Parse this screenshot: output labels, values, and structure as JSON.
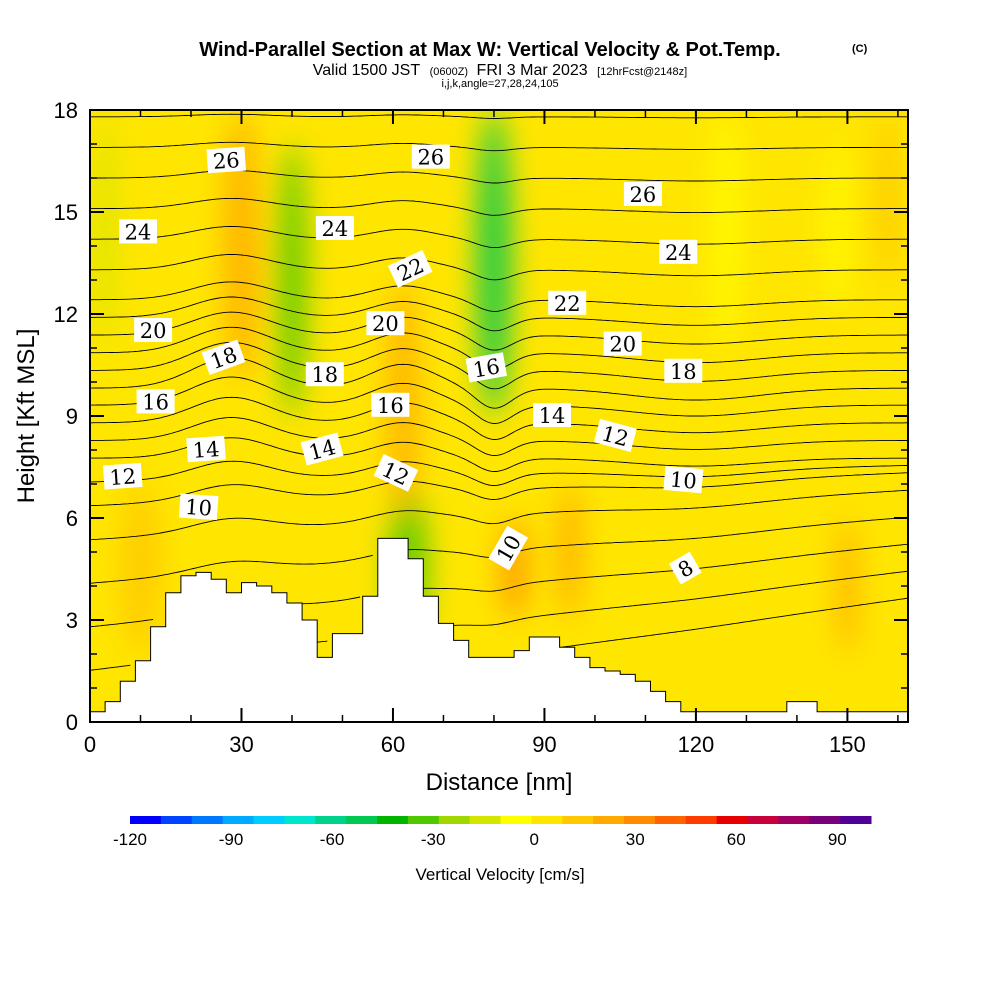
{
  "chart_data": {
    "type": "heatmap",
    "title": "Wind-Parallel Section at Max W: Vertical Velocity & Pot.Temp.",
    "copyright": "(C)",
    "subtitle_parts": [
      "Valid 1500 JST",
      "(0600Z)",
      "FRI 3 Mar 2023",
      "[12hrFcst@2148z]"
    ],
    "subtitle2": "i,j,k,angle=27,28,24,105",
    "xlabel": "Distance [nm]",
    "ylabel": "Height [Kft MSL]",
    "xlim": [
      0,
      162
    ],
    "ylim": [
      0,
      18
    ],
    "x_ticks": [
      0,
      30,
      60,
      90,
      120,
      150
    ],
    "y_ticks": [
      0,
      3,
      6,
      9,
      12,
      15,
      18
    ],
    "grid": false,
    "colorbar": {
      "label": "Vertical Velocity [cm/s]",
      "ticks": [
        -120,
        -90,
        -60,
        -30,
        0,
        30,
        60,
        90
      ],
      "range": [
        -120,
        100
      ],
      "colors": [
        "#0000ff",
        "#0044ff",
        "#0077ff",
        "#00aaff",
        "#00ccff",
        "#00e6cc",
        "#00d28c",
        "#00c850",
        "#00b400",
        "#50c800",
        "#a0d700",
        "#d2e600",
        "#ffff00",
        "#ffe600",
        "#ffc800",
        "#ffaa00",
        "#ff8c00",
        "#ff6400",
        "#ff3c00",
        "#e60000",
        "#c8003c",
        "#a00064",
        "#780078",
        "#500096"
      ]
    },
    "theta_interval": 1,
    "theta_contour_labels": [
      {
        "value": 26,
        "x": 27.0,
        "y": 16.5,
        "angle": -4
      },
      {
        "value": 26,
        "x": 67.5,
        "y": 16.6,
        "angle": 0
      },
      {
        "value": 26,
        "x": 109.5,
        "y": 15.5,
        "angle": 0
      },
      {
        "value": 24,
        "x": 9.5,
        "y": 14.4,
        "angle": 0
      },
      {
        "value": 24,
        "x": 48.5,
        "y": 14.5,
        "angle": 0
      },
      {
        "value": 24,
        "x": 116.5,
        "y": 13.8,
        "angle": 0
      },
      {
        "value": 22,
        "x": 63.5,
        "y": 13.3,
        "angle": -25
      },
      {
        "value": 22,
        "x": 94.5,
        "y": 12.3,
        "angle": 0
      },
      {
        "value": 20,
        "x": 12.5,
        "y": 11.5,
        "angle": 0
      },
      {
        "value": 20,
        "x": 58.5,
        "y": 11.7,
        "angle": 0
      },
      {
        "value": 20,
        "x": 105.5,
        "y": 11.1,
        "angle": 0
      },
      {
        "value": 18,
        "x": 26.5,
        "y": 10.7,
        "angle": -20
      },
      {
        "value": 18,
        "x": 46.5,
        "y": 10.2,
        "angle": 0
      },
      {
        "value": 18,
        "x": 117.5,
        "y": 10.3,
        "angle": 0
      },
      {
        "value": 16,
        "x": 13.0,
        "y": 9.4,
        "angle": 0
      },
      {
        "value": 16,
        "x": 59.5,
        "y": 9.3,
        "angle": 0
      },
      {
        "value": 16,
        "x": 78.5,
        "y": 10.4,
        "angle": -10
      },
      {
        "value": 14,
        "x": 23.0,
        "y": 8.0,
        "angle": -4
      },
      {
        "value": 14,
        "x": 46.0,
        "y": 8.0,
        "angle": -15
      },
      {
        "value": 14,
        "x": 91.5,
        "y": 9.0,
        "angle": 0
      },
      {
        "value": 12,
        "x": 6.5,
        "y": 7.2,
        "angle": -4
      },
      {
        "value": 12,
        "x": 60.5,
        "y": 7.3,
        "angle": 25
      },
      {
        "value": 12,
        "x": 104.0,
        "y": 8.4,
        "angle": 15
      },
      {
        "value": 10,
        "x": 21.5,
        "y": 6.3,
        "angle": 4
      },
      {
        "value": 10,
        "x": 83.0,
        "y": 5.1,
        "angle": -60
      },
      {
        "value": 10,
        "x": 117.5,
        "y": 7.1,
        "angle": 5
      },
      {
        "value": 8,
        "x": 118.0,
        "y": 4.5,
        "angle": -30
      }
    ],
    "vertical_velocity_features": [
      {
        "x": 80,
        "y_min": 9,
        "y_max": 18,
        "value": -50,
        "width": 7
      },
      {
        "x": 40,
        "y_min": 9,
        "y_max": 17,
        "value": -30,
        "width": 6
      },
      {
        "x": 3,
        "y_min": 11,
        "y_max": 18,
        "value": -15,
        "width": 4
      },
      {
        "x": 126,
        "y_min": 11,
        "y_max": 18,
        "value": -10,
        "width": 5
      },
      {
        "x": 148,
        "y_min": 12,
        "y_max": 17,
        "value": -10,
        "width": 4
      },
      {
        "x": 63,
        "y_min": 2,
        "y_max": 7,
        "value": -30,
        "width": 8
      },
      {
        "x": 30,
        "y_min": 10,
        "y_max": 18,
        "value": 20,
        "width": 7
      },
      {
        "x": 62,
        "y_min": 6,
        "y_max": 13,
        "value": 20,
        "width": 6
      },
      {
        "x": 84,
        "y_min": 3,
        "y_max": 6,
        "value": 30,
        "width": 5
      },
      {
        "x": 95,
        "y_min": 3,
        "y_max": 7,
        "value": 25,
        "width": 5
      },
      {
        "x": 150,
        "y_min": 2,
        "y_max": 6,
        "value": 25,
        "width": 4
      },
      {
        "x": 158,
        "y_min": 13,
        "y_max": 18,
        "value": 15,
        "width": 5
      },
      {
        "x": 10,
        "y_min": 2,
        "y_max": 7,
        "value": 10,
        "width": 8
      }
    ],
    "terrain": {
      "x": [
        0,
        3,
        6,
        9,
        12,
        15,
        18,
        21,
        24,
        27,
        30,
        33,
        36,
        39,
        42,
        45,
        48,
        51,
        54,
        57,
        60,
        63,
        66,
        69,
        72,
        75,
        78,
        81,
        84,
        87,
        90,
        93,
        96,
        99,
        102,
        105,
        108,
        111,
        114,
        117,
        120,
        123,
        126,
        129,
        132,
        135,
        138,
        141,
        144,
        147,
        150,
        153,
        156,
        159,
        162
      ],
      "height": [
        0.3,
        0.6,
        1.2,
        1.8,
        2.8,
        3.8,
        4.3,
        4.4,
        4.2,
        3.8,
        4.1,
        4.0,
        3.8,
        3.5,
        3.0,
        1.9,
        2.6,
        2.6,
        3.7,
        5.4,
        5.4,
        4.8,
        3.7,
        2.9,
        2.4,
        1.9,
        1.9,
        1.9,
        2.1,
        2.5,
        2.5,
        2.2,
        1.9,
        1.6,
        1.5,
        1.4,
        1.2,
        0.9,
        0.6,
        0.3,
        0.3,
        0.3,
        0.3,
        0.3,
        0.3,
        0.3,
        0.6,
        0.6,
        0.3,
        0.3,
        0.3,
        0.3,
        0.3,
        0.3,
        0.3
      ]
    }
  }
}
